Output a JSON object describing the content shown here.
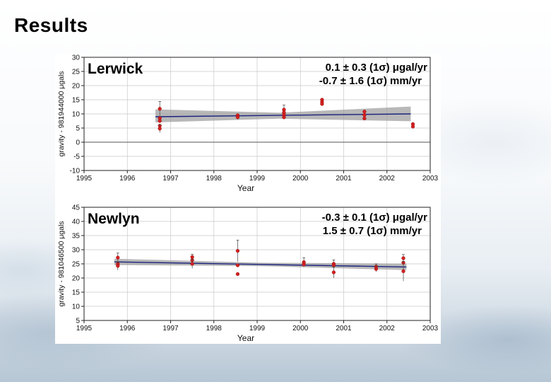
{
  "page": {
    "title": "Results"
  },
  "colors": {
    "point": "#d42020",
    "fit": "#1a237e",
    "band": "#9a9a9a",
    "grid": "#c8c8c8",
    "zero_line": "#555555"
  },
  "chart_data": [
    {
      "type": "scatter",
      "station": "Lerwick",
      "rate_gravity": "0.1 ± 0.3 (1σ)  μgal/yr",
      "rate_height": "-0.7 ± 1.6 (1σ)  mm/yr",
      "xlabel": "Year",
      "ylabel": "gravity - 981944000 μgals",
      "xlim": [
        1995,
        2003
      ],
      "ylim": [
        -10,
        30
      ],
      "xticks": [
        1995,
        1996,
        1997,
        1998,
        1999,
        2000,
        2001,
        2002,
        2003
      ],
      "yticks": [
        -10,
        -5,
        0,
        5,
        10,
        15,
        20,
        25,
        30
      ],
      "grid": true,
      "zero_line": 0,
      "points": [
        {
          "x": 1996.75,
          "y": 11.8,
          "err": 2.6
        },
        {
          "x": 1996.75,
          "y": 8.5
        },
        {
          "x": 1996.75,
          "y": 7.5
        },
        {
          "x": 1996.75,
          "y": 5.8
        },
        {
          "x": 1996.75,
          "y": 4.8,
          "err": 1.4
        },
        {
          "x": 1998.55,
          "y": 9.5
        },
        {
          "x": 1998.55,
          "y": 8.8
        },
        {
          "x": 1999.62,
          "y": 11.5,
          "err": 1.6
        },
        {
          "x": 1999.62,
          "y": 10.5
        },
        {
          "x": 1999.62,
          "y": 9.6
        },
        {
          "x": 1999.62,
          "y": 8.8
        },
        {
          "x": 2000.5,
          "y": 15.0
        },
        {
          "x": 2000.5,
          "y": 14.2
        },
        {
          "x": 2000.5,
          "y": 13.5
        },
        {
          "x": 2001.48,
          "y": 10.8
        },
        {
          "x": 2001.48,
          "y": 9.6
        },
        {
          "x": 2001.48,
          "y": 8.4
        },
        {
          "x": 2002.6,
          "y": 6.4
        },
        {
          "x": 2002.6,
          "y": 5.5
        }
      ],
      "fit": {
        "x": [
          1996.65,
          2002.55
        ],
        "y": [
          9.0,
          10.0
        ]
      },
      "band": [
        {
          "x": 1996.65,
          "lower": 7.0,
          "upper": 11.6
        },
        {
          "x": 1999.5,
          "lower": 8.3,
          "upper": 10.4
        },
        {
          "x": 2002.55,
          "lower": 7.4,
          "upper": 12.6
        }
      ]
    },
    {
      "type": "scatter",
      "station": "Newlyn",
      "rate_gravity": "-0.3 ± 0.1 (1σ)  μgal/yr",
      "rate_height": "1.5 ± 0.7 (1σ)  mm/yr",
      "xlabel": "Year",
      "ylabel": "gravity - 981046500 μgals",
      "xlim": [
        1995,
        2003
      ],
      "ylim": [
        5,
        45
      ],
      "xticks": [
        1995,
        1996,
        1997,
        1998,
        1999,
        2000,
        2001,
        2002,
        2003
      ],
      "yticks": [
        5,
        10,
        15,
        20,
        25,
        30,
        35,
        40,
        45
      ],
      "grid": true,
      "points": [
        {
          "x": 1995.78,
          "y": 27.2,
          "err": 1.6
        },
        {
          "x": 1995.78,
          "y": 25.0
        },
        {
          "x": 1995.78,
          "y": 24.3,
          "err": 1.5
        },
        {
          "x": 1997.5,
          "y": 27.4,
          "err": 1.0
        },
        {
          "x": 1997.5,
          "y": 26.3
        },
        {
          "x": 1997.5,
          "y": 25.0,
          "err": 1.6
        },
        {
          "x": 1998.55,
          "y": 29.6,
          "err": 3.8
        },
        {
          "x": 1998.55,
          "y": 24.5
        },
        {
          "x": 1998.55,
          "y": 21.4
        },
        {
          "x": 2000.08,
          "y": 25.6,
          "err": 1.6
        },
        {
          "x": 2000.08,
          "y": 24.8
        },
        {
          "x": 2000.77,
          "y": 25.0,
          "err": 1.4
        },
        {
          "x": 2000.77,
          "y": 24.4
        },
        {
          "x": 2000.77,
          "y": 22.0,
          "err": 2.0
        },
        {
          "x": 2001.75,
          "y": 24.0,
          "err": 1.0
        },
        {
          "x": 2001.75,
          "y": 23.2,
          "err": 1.0
        },
        {
          "x": 2002.38,
          "y": 27.0,
          "err": 1.3
        },
        {
          "x": 2002.38,
          "y": 25.4
        },
        {
          "x": 2002.38,
          "y": 22.4,
          "err": 3.5
        }
      ],
      "fit": {
        "x": [
          1995.7,
          2002.45
        ],
        "y": [
          25.7,
          23.9
        ]
      },
      "band": [
        {
          "x": 1995.7,
          "lower": 24.6,
          "upper": 26.8
        },
        {
          "x": 1999.1,
          "lower": 24.2,
          "upper": 25.4
        },
        {
          "x": 2002.45,
          "lower": 22.8,
          "upper": 25.1
        }
      ]
    }
  ]
}
